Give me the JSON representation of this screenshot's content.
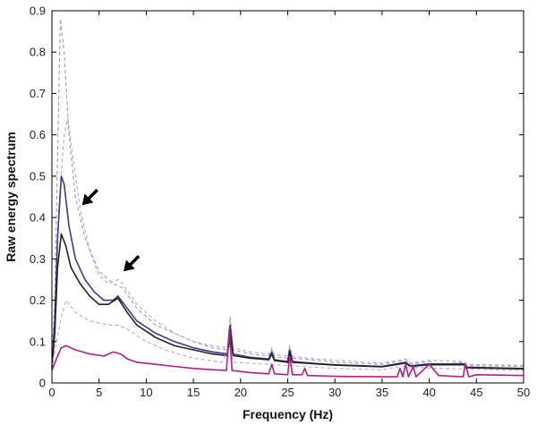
{
  "chart_data": {
    "type": "line",
    "title": "",
    "xlabel": "Frequency (Hz)",
    "ylabel": "Raw energy spectrum",
    "xlim": [
      0,
      50
    ],
    "ylim": [
      0,
      0.9
    ],
    "x_ticks": [
      "0",
      "5",
      "10",
      "15",
      "20",
      "25",
      "30",
      "35",
      "40",
      "45",
      "50"
    ],
    "y_ticks": [
      "0",
      "0.1",
      "0.2",
      "0.3",
      "0.4",
      "0.5",
      "0.6",
      "0.7",
      "0.8",
      "0.9"
    ],
    "grid": false,
    "legend": "none",
    "series": [
      {
        "color": "#9a9ac4",
        "style": "dashed",
        "points": [
          [
            0,
            0.05
          ],
          [
            0.3,
            0.2
          ],
          [
            0.6,
            0.55
          ],
          [
            0.9,
            0.88
          ],
          [
            1.3,
            0.8
          ],
          [
            1.8,
            0.6
          ],
          [
            2.5,
            0.45
          ],
          [
            3.5,
            0.35
          ],
          [
            5,
            0.27
          ],
          [
            6.5,
            0.24
          ],
          [
            7.5,
            0.23
          ],
          [
            9,
            0.18
          ],
          [
            11,
            0.14
          ],
          [
            13,
            0.12
          ],
          [
            15,
            0.1
          ],
          [
            17,
            0.085
          ],
          [
            18.6,
            0.08
          ],
          [
            18.9,
            0.16
          ],
          [
            19.2,
            0.08
          ],
          [
            21,
            0.07
          ],
          [
            23,
            0.065
          ],
          [
            23.3,
            0.08
          ],
          [
            23.6,
            0.063
          ],
          [
            25,
            0.06
          ],
          [
            25.2,
            0.085
          ],
          [
            25.5,
            0.06
          ],
          [
            28,
            0.055
          ],
          [
            30,
            0.05
          ],
          [
            35,
            0.045
          ],
          [
            37.5,
            0.055
          ],
          [
            38,
            0.045
          ],
          [
            40,
            0.052
          ],
          [
            41,
            0.044
          ],
          [
            43.7,
            0.05
          ],
          [
            44,
            0.042
          ],
          [
            50,
            0.04
          ]
        ]
      },
      {
        "color": "#b8a6c8",
        "style": "dashed",
        "points": [
          [
            0,
            0.05
          ],
          [
            0.4,
            0.25
          ],
          [
            0.8,
            0.45
          ],
          [
            1.3,
            0.6
          ],
          [
            1.7,
            0.64
          ],
          [
            2.2,
            0.55
          ],
          [
            3,
            0.42
          ],
          [
            4,
            0.32
          ],
          [
            5,
            0.26
          ],
          [
            6,
            0.24
          ],
          [
            7,
            0.25
          ],
          [
            7.5,
            0.24
          ],
          [
            9,
            0.19
          ],
          [
            11,
            0.15
          ],
          [
            13,
            0.12
          ],
          [
            15,
            0.1
          ],
          [
            17,
            0.09
          ],
          [
            18.6,
            0.085
          ],
          [
            18.9,
            0.15
          ],
          [
            19.2,
            0.085
          ],
          [
            21,
            0.075
          ],
          [
            23,
            0.07
          ],
          [
            23.3,
            0.085
          ],
          [
            23.6,
            0.068
          ],
          [
            25,
            0.065
          ],
          [
            25.2,
            0.09
          ],
          [
            25.5,
            0.064
          ],
          [
            28,
            0.058
          ],
          [
            30,
            0.055
          ],
          [
            35,
            0.048
          ],
          [
            37.5,
            0.058
          ],
          [
            38,
            0.048
          ],
          [
            40,
            0.055
          ],
          [
            43.7,
            0.052
          ],
          [
            44,
            0.045
          ],
          [
            50,
            0.043
          ]
        ]
      },
      {
        "color": "#3a3a8e",
        "style": "solid",
        "points": [
          [
            0,
            0.04
          ],
          [
            0.3,
            0.15
          ],
          [
            0.6,
            0.35
          ],
          [
            1,
            0.5
          ],
          [
            1.3,
            0.48
          ],
          [
            1.8,
            0.38
          ],
          [
            2.5,
            0.3
          ],
          [
            3.5,
            0.25
          ],
          [
            4.5,
            0.22
          ],
          [
            5.5,
            0.2
          ],
          [
            6.5,
            0.2
          ],
          [
            7,
            0.21
          ],
          [
            8,
            0.18
          ],
          [
            9,
            0.15
          ],
          [
            11,
            0.12
          ],
          [
            13,
            0.1
          ],
          [
            15,
            0.085
          ],
          [
            17,
            0.075
          ],
          [
            18.6,
            0.07
          ],
          [
            18.9,
            0.14
          ],
          [
            19.2,
            0.07
          ],
          [
            21,
            0.062
          ],
          [
            23,
            0.058
          ],
          [
            23.3,
            0.075
          ],
          [
            23.6,
            0.056
          ],
          [
            25,
            0.052
          ],
          [
            25.2,
            0.08
          ],
          [
            25.5,
            0.052
          ],
          [
            28,
            0.047
          ],
          [
            30,
            0.044
          ],
          [
            35,
            0.04
          ],
          [
            37.5,
            0.05
          ],
          [
            38,
            0.041
          ],
          [
            40,
            0.046
          ],
          [
            43.7,
            0.046
          ],
          [
            44,
            0.038
          ],
          [
            50,
            0.035
          ]
        ]
      },
      {
        "color": "#222222",
        "style": "solid",
        "points": [
          [
            0,
            0.035
          ],
          [
            0.3,
            0.12
          ],
          [
            0.6,
            0.28
          ],
          [
            1,
            0.36
          ],
          [
            1.5,
            0.33
          ],
          [
            2,
            0.28
          ],
          [
            3,
            0.24
          ],
          [
            4,
            0.21
          ],
          [
            5,
            0.19
          ],
          [
            6,
            0.19
          ],
          [
            7,
            0.205
          ],
          [
            8,
            0.17
          ],
          [
            9,
            0.14
          ],
          [
            11,
            0.11
          ],
          [
            13,
            0.09
          ],
          [
            15,
            0.08
          ],
          [
            17,
            0.07
          ],
          [
            18.6,
            0.066
          ],
          [
            18.9,
            0.12
          ],
          [
            19.2,
            0.066
          ],
          [
            21,
            0.06
          ],
          [
            23,
            0.056
          ],
          [
            23.3,
            0.07
          ],
          [
            23.6,
            0.054
          ],
          [
            25,
            0.05
          ],
          [
            25.2,
            0.075
          ],
          [
            25.5,
            0.05
          ],
          [
            28,
            0.046
          ],
          [
            30,
            0.043
          ],
          [
            35,
            0.039
          ],
          [
            37.5,
            0.048
          ],
          [
            38,
            0.04
          ],
          [
            40,
            0.044
          ],
          [
            43.7,
            0.044
          ],
          [
            44,
            0.037
          ],
          [
            50,
            0.034
          ]
        ]
      },
      {
        "color": "#c9a0c8",
        "style": "dashed",
        "points": [
          [
            0,
            0.04
          ],
          [
            0.5,
            0.1
          ],
          [
            1,
            0.16
          ],
          [
            1.5,
            0.2
          ],
          [
            2.5,
            0.17
          ],
          [
            4,
            0.15
          ],
          [
            6,
            0.14
          ],
          [
            7,
            0.14
          ],
          [
            8,
            0.13
          ],
          [
            10,
            0.1
          ],
          [
            12,
            0.08
          ],
          [
            15,
            0.06
          ],
          [
            18,
            0.05
          ],
          [
            18.9,
            0.09
          ],
          [
            19.2,
            0.05
          ],
          [
            23,
            0.045
          ],
          [
            25,
            0.042
          ],
          [
            30,
            0.035
          ],
          [
            35,
            0.032
          ],
          [
            37,
            0.04
          ],
          [
            40,
            0.036
          ],
          [
            45,
            0.033
          ],
          [
            50,
            0.03
          ]
        ]
      },
      {
        "color": "#b01e8a",
        "style": "solid",
        "points": [
          [
            0,
            0.03
          ],
          [
            0.5,
            0.06
          ],
          [
            1,
            0.085
          ],
          [
            1.5,
            0.09
          ],
          [
            2.5,
            0.08
          ],
          [
            4,
            0.07
          ],
          [
            5.5,
            0.065
          ],
          [
            6.5,
            0.075
          ],
          [
            7.3,
            0.07
          ],
          [
            8,
            0.058
          ],
          [
            9,
            0.05
          ],
          [
            11,
            0.045
          ],
          [
            13,
            0.04
          ],
          [
            15,
            0.035
          ],
          [
            17,
            0.032
          ],
          [
            18.5,
            0.03
          ],
          [
            18.8,
            0.13
          ],
          [
            19.1,
            0.03
          ],
          [
            21,
            0.025
          ],
          [
            23,
            0.022
          ],
          [
            23.3,
            0.045
          ],
          [
            23.6,
            0.022
          ],
          [
            25,
            0.02
          ],
          [
            25.2,
            0.065
          ],
          [
            25.5,
            0.02
          ],
          [
            26.5,
            0.02
          ],
          [
            26.8,
            0.035
          ],
          [
            27.1,
            0.018
          ],
          [
            30,
            0.016
          ],
          [
            35,
            0.015
          ],
          [
            36.6,
            0.015
          ],
          [
            36.9,
            0.035
          ],
          [
            37.2,
            0.015
          ],
          [
            37.5,
            0.045
          ],
          [
            37.8,
            0.015
          ],
          [
            38.3,
            0.04
          ],
          [
            38.6,
            0.015
          ],
          [
            40,
            0.045
          ],
          [
            41,
            0.018
          ],
          [
            43.6,
            0.015
          ],
          [
            43.8,
            0.045
          ],
          [
            44.2,
            0.015
          ],
          [
            45,
            0.02
          ],
          [
            50,
            0.018
          ]
        ]
      }
    ],
    "annotations": [
      {
        "type": "arrow",
        "points_to": [
          3.2,
          0.43
        ]
      },
      {
        "type": "arrow",
        "points_to": [
          7.6,
          0.27
        ]
      }
    ]
  }
}
